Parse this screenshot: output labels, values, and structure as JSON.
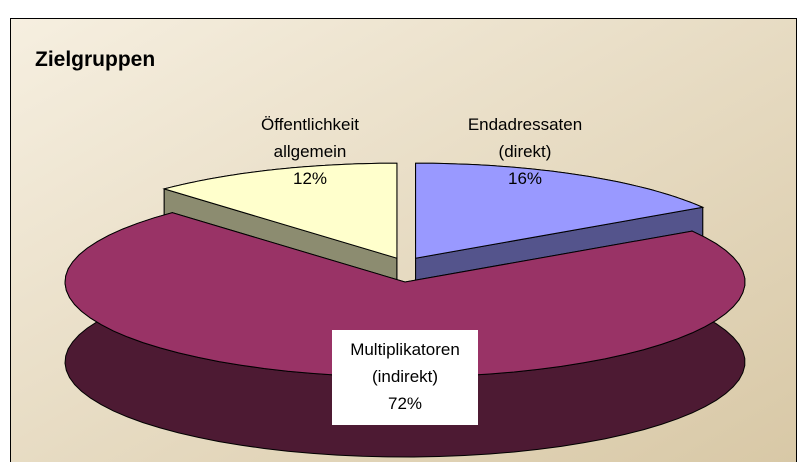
{
  "chart_data": {
    "type": "pie3d",
    "title": "Zielgruppen",
    "categories": [
      "Endadressaten (direkt)",
      "Multiplikatoren (indirekt)",
      "Öffentlichkeit allgemein"
    ],
    "values": [
      16,
      72,
      12
    ],
    "value_labels": [
      "16%",
      "72%",
      "12%"
    ],
    "colors": [
      "#9999ff",
      "#993366",
      "#ffffcc"
    ],
    "exploded": [
      true,
      false,
      true
    ]
  }
}
